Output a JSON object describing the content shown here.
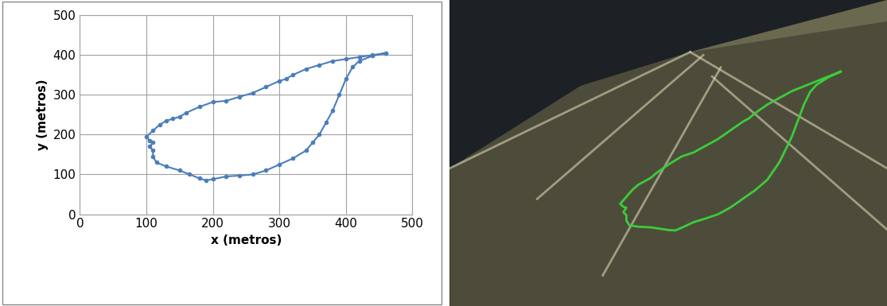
{
  "chart_data": {
    "type": "line",
    "marker": "o",
    "color": "#4a7ebb",
    "xlabel": "x (metros)",
    "ylabel": "y (metros)",
    "x": [
      460,
      440,
      420,
      400,
      380,
      360,
      340,
      320,
      310,
      300,
      280,
      260,
      240,
      220,
      200,
      180,
      160,
      150,
      140,
      130,
      120,
      110,
      100,
      105,
      110,
      105,
      110,
      110,
      115,
      130,
      150,
      165,
      180,
      190,
      200,
      220,
      240,
      260,
      280,
      300,
      320,
      340,
      350,
      360,
      370,
      380,
      390,
      400,
      410,
      420,
      440,
      460
    ],
    "values": [
      405,
      400,
      395,
      390,
      385,
      375,
      365,
      350,
      340,
      335,
      320,
      305,
      295,
      285,
      282,
      270,
      255,
      245,
      240,
      235,
      225,
      210,
      195,
      185,
      180,
      170,
      160,
      145,
      130,
      120,
      110,
      100,
      90,
      85,
      88,
      95,
      97,
      100,
      110,
      125,
      140,
      160,
      180,
      200,
      230,
      260,
      300,
      340,
      370,
      385,
      398,
      405
    ],
    "xlim": [
      0,
      500
    ],
    "ylim": [
      0,
      500
    ],
    "xticks": [
      0,
      100,
      200,
      300,
      400,
      500
    ],
    "yticks": [
      0,
      100,
      200,
      300,
      400,
      500
    ],
    "grid": true
  }
}
